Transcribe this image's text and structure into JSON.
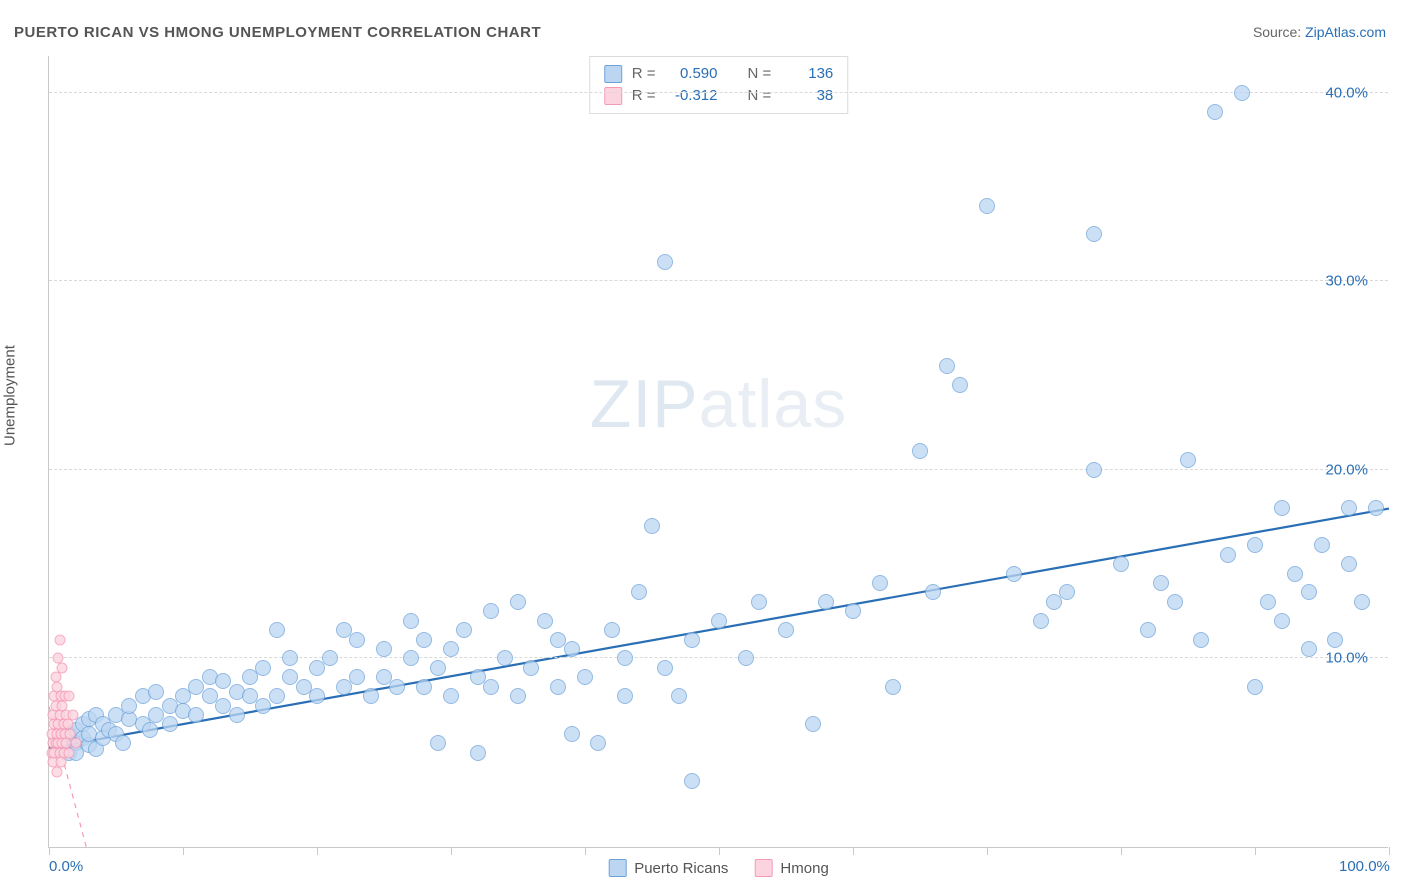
{
  "title": "PUERTO RICAN VS HMONG UNEMPLOYMENT CORRELATION CHART",
  "source_label": "Source:",
  "source_name": "ZipAtlas.com",
  "watermark_main": "ZIP",
  "watermark_sub": "atlas",
  "chart": {
    "type": "scatter",
    "ylabel": "Unemployment",
    "xlim": [
      0,
      100
    ],
    "ylim": [
      0,
      42
    ],
    "ytick_values": [
      10,
      20,
      30,
      40
    ],
    "ytick_labels": [
      "10.0%",
      "20.0%",
      "30.0%",
      "40.0%"
    ],
    "xtick_positions": [
      0,
      10,
      20,
      30,
      40,
      50,
      60,
      70,
      80,
      90,
      100
    ],
    "xtick_labels": {
      "0": "0.0%",
      "100": "100.0%"
    },
    "background_color": "#ffffff",
    "grid_color": "#d9d9d9",
    "series": [
      {
        "name": "Puerto Ricans",
        "marker_fill": "#bcd6f2",
        "marker_stroke": "#6ea3da",
        "marker_size": 16,
        "marker_opacity": 0.75,
        "R": "0.590",
        "N": "136",
        "trend": {
          "x1": 0,
          "y1": 5.3,
          "x2": 100,
          "y2": 18.0,
          "color": "#2a6fb5",
          "width": 2.2
        },
        "points": [
          [
            1,
            5.2
          ],
          [
            1,
            5.8
          ],
          [
            1.5,
            6.0
          ],
          [
            1.5,
            5.0
          ],
          [
            2,
            5.5
          ],
          [
            2,
            6.2
          ],
          [
            2,
            5.0
          ],
          [
            2.5,
            5.8
          ],
          [
            2.5,
            6.5
          ],
          [
            3,
            5.4
          ],
          [
            3,
            6.0
          ],
          [
            3,
            6.8
          ],
          [
            3.5,
            5.2
          ],
          [
            3.5,
            7.0
          ],
          [
            4,
            6.5
          ],
          [
            4,
            5.8
          ],
          [
            4.5,
            6.2
          ],
          [
            5,
            7.0
          ],
          [
            5,
            6.0
          ],
          [
            5.5,
            5.5
          ],
          [
            6,
            6.8
          ],
          [
            6,
            7.5
          ],
          [
            7,
            6.5
          ],
          [
            7,
            8.0
          ],
          [
            7.5,
            6.2
          ],
          [
            8,
            7.0
          ],
          [
            8,
            8.2
          ],
          [
            9,
            7.5
          ],
          [
            9,
            6.5
          ],
          [
            10,
            8.0
          ],
          [
            10,
            7.2
          ],
          [
            11,
            8.5
          ],
          [
            11,
            7.0
          ],
          [
            12,
            8.0
          ],
          [
            12,
            9.0
          ],
          [
            13,
            7.5
          ],
          [
            13,
            8.8
          ],
          [
            14,
            8.2
          ],
          [
            14,
            7.0
          ],
          [
            15,
            9.0
          ],
          [
            15,
            8.0
          ],
          [
            16,
            9.5
          ],
          [
            16,
            7.5
          ],
          [
            17,
            11.5
          ],
          [
            17,
            8.0
          ],
          [
            18,
            9.0
          ],
          [
            18,
            10.0
          ],
          [
            19,
            8.5
          ],
          [
            20,
            9.5
          ],
          [
            20,
            8.0
          ],
          [
            21,
            10.0
          ],
          [
            22,
            8.5
          ],
          [
            22,
            11.5
          ],
          [
            23,
            9.0
          ],
          [
            23,
            11.0
          ],
          [
            24,
            8.0
          ],
          [
            25,
            10.5
          ],
          [
            25,
            9.0
          ],
          [
            26,
            8.5
          ],
          [
            27,
            10.0
          ],
          [
            27,
            12.0
          ],
          [
            28,
            8.5
          ],
          [
            28,
            11.0
          ],
          [
            29,
            5.5
          ],
          [
            29,
            9.5
          ],
          [
            30,
            10.5
          ],
          [
            30,
            8.0
          ],
          [
            31,
            11.5
          ],
          [
            32,
            9.0
          ],
          [
            32,
            5.0
          ],
          [
            33,
            8.5
          ],
          [
            33,
            12.5
          ],
          [
            34,
            10.0
          ],
          [
            35,
            8.0
          ],
          [
            35,
            13.0
          ],
          [
            36,
            9.5
          ],
          [
            37,
            12.0
          ],
          [
            38,
            8.5
          ],
          [
            38,
            11.0
          ],
          [
            39,
            6.0
          ],
          [
            39,
            10.5
          ],
          [
            40,
            9.0
          ],
          [
            41,
            5.5
          ],
          [
            42,
            11.5
          ],
          [
            43,
            8.0
          ],
          [
            43,
            10.0
          ],
          [
            44,
            13.5
          ],
          [
            45,
            17.0
          ],
          [
            46,
            9.5
          ],
          [
            46,
            31.0
          ],
          [
            47,
            8.0
          ],
          [
            48,
            3.5
          ],
          [
            48,
            11.0
          ],
          [
            50,
            12.0
          ],
          [
            52,
            10.0
          ],
          [
            53,
            13.0
          ],
          [
            55,
            11.5
          ],
          [
            57,
            6.5
          ],
          [
            58,
            13.0
          ],
          [
            60,
            12.5
          ],
          [
            62,
            14.0
          ],
          [
            63,
            8.5
          ],
          [
            65,
            21.0
          ],
          [
            66,
            13.5
          ],
          [
            67,
            25.5
          ],
          [
            68,
            24.5
          ],
          [
            70,
            34.0
          ],
          [
            72,
            14.5
          ],
          [
            74,
            12.0
          ],
          [
            75,
            13.0
          ],
          [
            76,
            13.5
          ],
          [
            78,
            32.5
          ],
          [
            78,
            20.0
          ],
          [
            80,
            15.0
          ],
          [
            82,
            11.5
          ],
          [
            83,
            14.0
          ],
          [
            84,
            13.0
          ],
          [
            85,
            20.5
          ],
          [
            86,
            11.0
          ],
          [
            87,
            39.0
          ],
          [
            88,
            15.5
          ],
          [
            89,
            40.0
          ],
          [
            90,
            16.0
          ],
          [
            90,
            8.5
          ],
          [
            91,
            13.0
          ],
          [
            92,
            18.0
          ],
          [
            92,
            12.0
          ],
          [
            93,
            14.5
          ],
          [
            94,
            13.5
          ],
          [
            94,
            10.5
          ],
          [
            95,
            16.0
          ],
          [
            96,
            11.0
          ],
          [
            97,
            15.0
          ],
          [
            97,
            18.0
          ],
          [
            98,
            13.0
          ],
          [
            99,
            18.0
          ]
        ]
      },
      {
        "name": "Hmong",
        "marker_fill": "#fcd4df",
        "marker_stroke": "#f59ab5",
        "marker_size": 11,
        "marker_opacity": 0.8,
        "R": "-0.312",
        "N": "38",
        "trend": {
          "x1": 0,
          "y1": 7.5,
          "x2": 2.8,
          "y2": 0,
          "color": "#f59ab5",
          "width": 1.2,
          "dash": true
        },
        "points": [
          [
            0.2,
            5.0
          ],
          [
            0.2,
            6.0
          ],
          [
            0.3,
            5.5
          ],
          [
            0.3,
            7.0
          ],
          [
            0.3,
            4.5
          ],
          [
            0.4,
            6.5
          ],
          [
            0.4,
            8.0
          ],
          [
            0.4,
            5.0
          ],
          [
            0.5,
            7.5
          ],
          [
            0.5,
            5.5
          ],
          [
            0.5,
            9.0
          ],
          [
            0.6,
            6.0
          ],
          [
            0.6,
            4.0
          ],
          [
            0.6,
            8.5
          ],
          [
            0.7,
            5.5
          ],
          [
            0.7,
            10.0
          ],
          [
            0.7,
            6.5
          ],
          [
            0.8,
            5.0
          ],
          [
            0.8,
            7.0
          ],
          [
            0.8,
            11.0
          ],
          [
            0.9,
            6.0
          ],
          [
            0.9,
            4.5
          ],
          [
            0.9,
            8.0
          ],
          [
            1.0,
            5.5
          ],
          [
            1.0,
            7.5
          ],
          [
            1.0,
            9.5
          ],
          [
            1.1,
            6.5
          ],
          [
            1.1,
            5.0
          ],
          [
            1.2,
            8.0
          ],
          [
            1.2,
            6.0
          ],
          [
            1.3,
            7.0
          ],
          [
            1.3,
            5.5
          ],
          [
            1.4,
            6.5
          ],
          [
            1.5,
            5.0
          ],
          [
            1.5,
            8.0
          ],
          [
            1.6,
            6.0
          ],
          [
            1.8,
            7.0
          ],
          [
            2.0,
            5.5
          ]
        ]
      }
    ],
    "legend_R_label": "R =",
    "legend_N_label": "N ="
  }
}
